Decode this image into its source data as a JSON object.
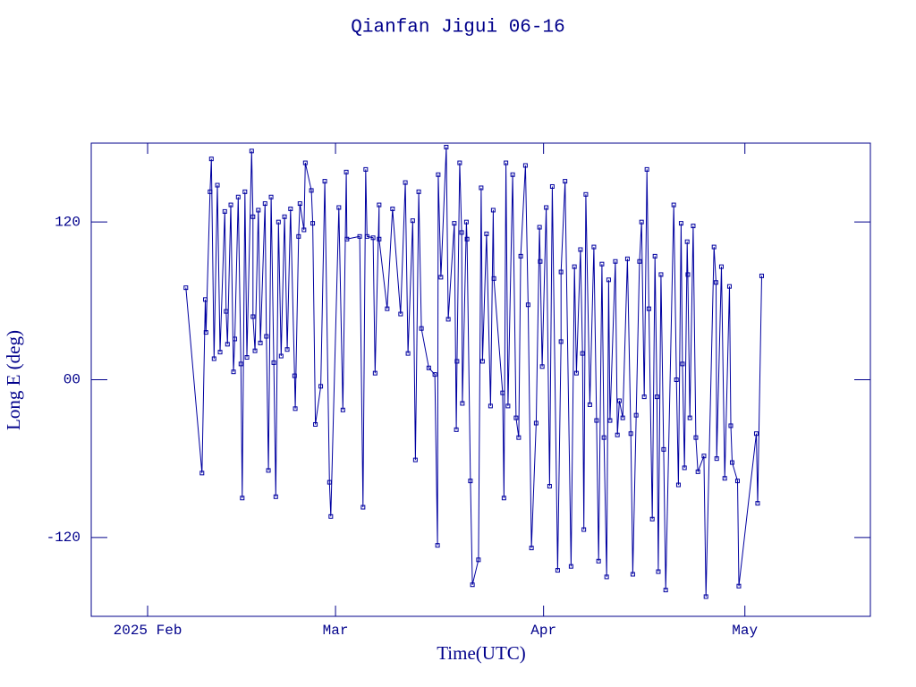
{
  "chart_data": {
    "type": "line",
    "title": "Qianfan Jigui 06-16",
    "x_label": "Time(UTC)",
    "y_label": "Long E (deg)",
    "xlim": [
      23.6,
      139.7
    ],
    "xticks": [
      {
        "value": 32,
        "label": "2025 Feb"
      },
      {
        "value": 60,
        "label": "Mar"
      },
      {
        "value": 91,
        "label": "Apr"
      },
      {
        "value": 121,
        "label": "May"
      }
    ],
    "ylim": [
      -180,
      180
    ],
    "yticks": [
      120,
      {
        "value": 0,
        "label": "00"
      },
      -120
    ],
    "series": [
      {
        "color": "#0000a0",
        "x": [
          37.7,
          40.1,
          40.6,
          40.7,
          41.3,
          41.5,
          41.9,
          42.4,
          42.8,
          43.5,
          43.7,
          43.9,
          44.4,
          44.8,
          45.0,
          45.5,
          45.9,
          46.1,
          46.5,
          46.8,
          47.5,
          47.7,
          47.7,
          48.0,
          48.5,
          48.8,
          49.5,
          49.7,
          50.0,
          50.4,
          50.8,
          51.1,
          51.5,
          51.9,
          52.4,
          52.8,
          53.3,
          53.9,
          54.0,
          54.5,
          54.7,
          55.3,
          55.5,
          56.4,
          56.6,
          57.0,
          57.8,
          58.4,
          59.1,
          59.3,
          60.5,
          61.1,
          61.6,
          61.7,
          63.6,
          64.1,
          64.5,
          64.7,
          65.6,
          65.9,
          66.5,
          66.5,
          67.7,
          68.5,
          69.7,
          70.4,
          70.8,
          71.5,
          71.9,
          72.4,
          72.8,
          73.9,
          74.8,
          75.2,
          75.3,
          75.7,
          76.5,
          76.8,
          77.7,
          78.0,
          78.1,
          78.5,
          78.8,
          78.9,
          79.5,
          79.6,
          80.1,
          80.4,
          81.3,
          81.7,
          81.9,
          82.5,
          83.1,
          83.5,
          83.6,
          84.9,
          85.1,
          85.4,
          85.7,
          86.4,
          86.9,
          87.3,
          87.6,
          88.3,
          88.7,
          89.2,
          89.9,
          90.4,
          90.5,
          90.8,
          91.4,
          91.9,
          92.3,
          93.1,
          93.6,
          93.6,
          94.2,
          95.1,
          95.6,
          95.9,
          96.5,
          96.8,
          97.0,
          97.3,
          97.9,
          98.5,
          98.9,
          99.2,
          99.7,
          100.0,
          100.4,
          100.7,
          100.9,
          101.7,
          102.0,
          102.3,
          102.8,
          103.5,
          104.0,
          104.3,
          104.8,
          105.3,
          105.6,
          106.0,
          106.4,
          106.7,
          107.2,
          107.6,
          107.9,
          108.1,
          108.5,
          108.9,
          109.2,
          110.4,
          110.8,
          111.1,
          111.5,
          111.7,
          112.0,
          112.4,
          112.5,
          112.8,
          113.3,
          113.7,
          114.0,
          114.9,
          115.2,
          116.4,
          116.7,
          116.8,
          117.5,
          118.0,
          118.7,
          118.9,
          119.1,
          119.9,
          120.1,
          122.7,
          122.9,
          123.5
        ],
        "values": [
          70,
          -71,
          61,
          36,
          143,
          168,
          16,
          148,
          21,
          128,
          52,
          27,
          133,
          6,
          31,
          139,
          12,
          -90,
          143,
          17,
          174,
          124,
          48,
          22,
          129,
          28,
          134,
          33,
          -69,
          139,
          13,
          -89,
          120,
          18,
          124,
          23,
          130,
          3,
          -22,
          109,
          134,
          114,
          165,
          144,
          119,
          -34,
          -5,
          151,
          -78,
          -104,
          131,
          -23,
          158,
          107,
          109,
          -97,
          160,
          109,
          108,
          5,
          133,
          107,
          54,
          130,
          50,
          150,
          20,
          121,
          -61,
          143,
          39,
          9,
          4,
          -126,
          156,
          78,
          177,
          46,
          119,
          -38,
          14,
          165,
          112,
          -18,
          120,
          107,
          -77,
          -156,
          -137,
          146,
          14,
          111,
          -20,
          129,
          77,
          -10,
          -90,
          165,
          -20,
          156,
          -29,
          -44,
          94,
          163,
          57,
          -128,
          -33,
          116,
          90,
          10,
          131,
          -81,
          147,
          -145,
          29,
          82,
          151,
          -142,
          86,
          5,
          99,
          20,
          -114,
          141,
          -19,
          101,
          -31,
          -138,
          88,
          -44,
          -150,
          76,
          -31,
          90,
          -42,
          -16,
          -29,
          92,
          -41,
          -148,
          -27,
          90,
          120,
          -13,
          160,
          54,
          -106,
          94,
          -13,
          -146,
          80,
          -53,
          -160,
          133,
          0,
          -80,
          119,
          12,
          -67,
          105,
          80,
          -29,
          117,
          -44,
          -70,
          -58,
          -165,
          101,
          74,
          -60,
          86,
          -75,
          71,
          -35,
          -63,
          -77,
          -157,
          -41,
          -94,
          79
        ]
      }
    ]
  }
}
